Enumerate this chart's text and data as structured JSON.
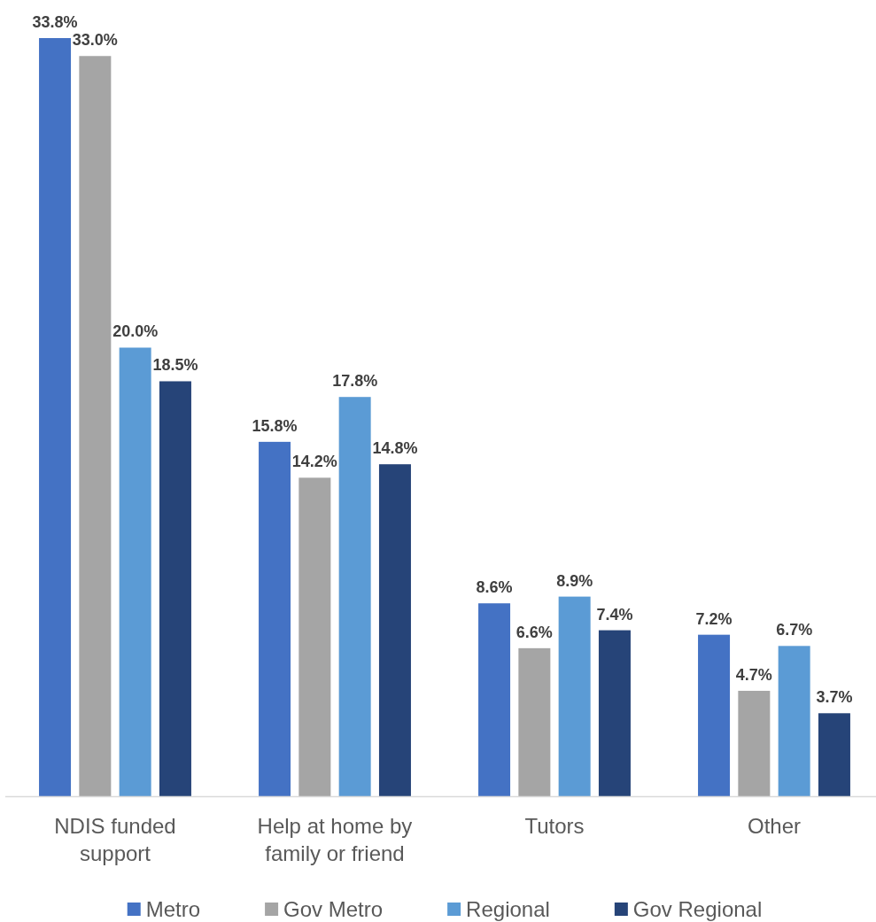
{
  "chart_data": {
    "type": "bar",
    "categories": [
      "NDIS funded support",
      "Help at home by family or friend",
      "Tutors",
      "Other"
    ],
    "series": [
      {
        "name": "Metro",
        "color": "#4472c4",
        "values": [
          33.8,
          15.8,
          8.6,
          7.2
        ],
        "value_labels": [
          "33.8%",
          "15.8%",
          "8.6%",
          "7.2%"
        ]
      },
      {
        "name": "Gov Metro",
        "color": "#a5a5a5",
        "values": [
          33.0,
          14.2,
          6.6,
          4.7
        ],
        "value_labels": [
          "33.0%",
          "14.2%",
          "6.6%",
          "4.7%"
        ]
      },
      {
        "name": "Regional",
        "color": "#5b9bd5",
        "values": [
          20.0,
          17.8,
          8.9,
          6.7
        ],
        "value_labels": [
          "20.0%",
          "17.8%",
          "8.9%",
          "6.7%"
        ]
      },
      {
        "name": "Gov Regional",
        "color": "#264478",
        "values": [
          18.5,
          14.8,
          7.4,
          3.7
        ],
        "value_labels": [
          "18.5%",
          "14.8%",
          "7.4%",
          "3.7%"
        ]
      }
    ],
    "legend": "bottom"
  }
}
